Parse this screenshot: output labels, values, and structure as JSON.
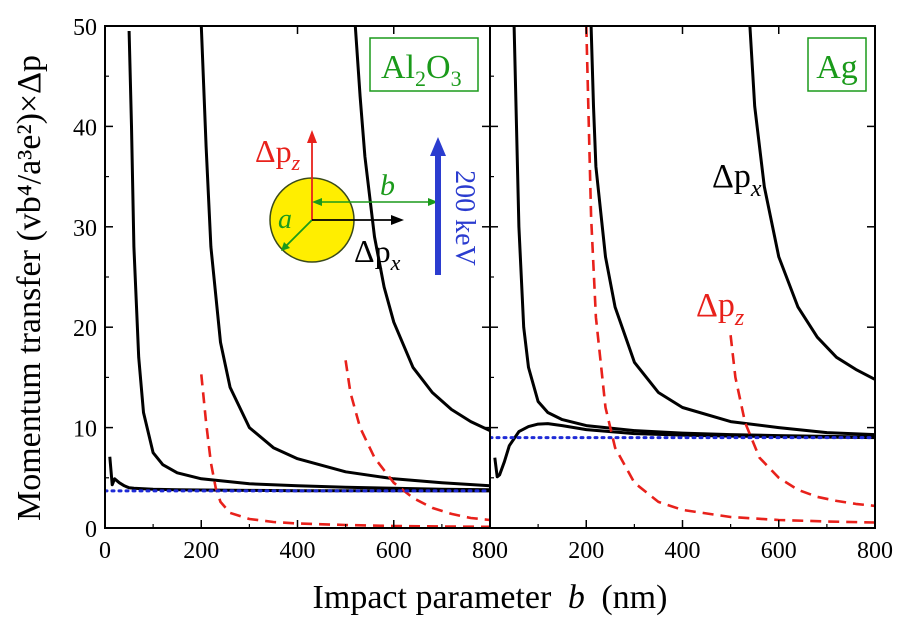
{
  "figure": {
    "ylabel": "Momentum transfer (vb⁴/a³e²)×Δp",
    "xlabel_main": "Impact parameter",
    "xlabel_var": "b",
    "xlabel_unit": "(nm)",
    "colors": {
      "dpx": "#000000",
      "dpz": "#e8211b",
      "asymptote": "#1f2bd6",
      "frame": "#000000",
      "sphere": "#ffee00",
      "sphere_edge": "#3a4a1a",
      "box": "#1a9a1a",
      "beam": "#2b3ccf",
      "radius": "#1a9a1a"
    },
    "inset": {
      "dpz_label": "Δp",
      "dpz_sub": "z",
      "dpx_label": "Δp",
      "dpx_sub": "x",
      "b_label": "b",
      "a_label": "a",
      "beam_label": "200 keV"
    }
  },
  "chart_data": [
    {
      "type": "line",
      "material": "Al₂O₃",
      "material_base": "Al",
      "material_sub1": "2",
      "material_mid": "O",
      "material_sub2": "3",
      "xlim": [
        0,
        800
      ],
      "ylim": [
        0,
        50
      ],
      "xticks": [
        0,
        200,
        400,
        600,
        800
      ],
      "yticks": [
        0,
        10,
        20,
        30,
        40,
        50
      ],
      "series": [
        {
          "component": "dpx",
          "style": "solid",
          "x": [
            10,
            15,
            20,
            30,
            40,
            50,
            60,
            80,
            100,
            150,
            200,
            300,
            400,
            500,
            600,
            700,
            800
          ],
          "y": [
            7.1,
            4.3,
            4.9,
            4.5,
            4.2,
            4.0,
            3.95,
            3.9,
            3.85,
            3.8,
            3.78,
            3.75,
            3.72,
            3.72,
            3.71,
            3.7,
            3.7
          ]
        },
        {
          "component": "dpx",
          "style": "solid",
          "x": [
            50,
            55,
            60,
            70,
            80,
            100,
            120,
            150,
            200,
            300,
            400,
            500,
            600,
            700,
            800
          ],
          "y": [
            49.5,
            40,
            28,
            17,
            11.5,
            7.5,
            6.3,
            5.5,
            4.9,
            4.4,
            4.2,
            4.05,
            3.95,
            3.85,
            3.8
          ]
        },
        {
          "component": "dpx",
          "style": "solid",
          "x": [
            200,
            205,
            210,
            220,
            240,
            260,
            300,
            350,
            400,
            500,
            600,
            700,
            800
          ],
          "y": [
            50,
            44,
            38,
            28,
            18.5,
            14,
            10,
            8,
            6.9,
            5.6,
            4.9,
            4.5,
            4.2
          ]
        },
        {
          "component": "dpx",
          "style": "solid",
          "x": [
            520,
            530,
            540,
            560,
            580,
            600,
            640,
            680,
            720,
            760,
            800
          ],
          "y": [
            50,
            43,
            37,
            29,
            24,
            20.5,
            16,
            13.5,
            11.8,
            10.6,
            9.7
          ]
        },
        {
          "component": "dpz",
          "style": "dashed",
          "x": [
            200,
            210,
            220,
            230,
            240,
            260,
            300,
            350,
            400,
            500,
            600,
            700,
            800
          ],
          "y": [
            15.3,
            10.5,
            6.5,
            4,
            2.6,
            1.5,
            0.9,
            0.6,
            0.45,
            0.3,
            0.2,
            0.15,
            0.12
          ]
        },
        {
          "component": "dpz",
          "style": "dashed",
          "x": [
            500,
            510,
            530,
            560,
            600,
            640,
            680,
            720,
            760,
            800
          ],
          "y": [
            16.7,
            13.5,
            10,
            7,
            4.5,
            3.0,
            2.0,
            1.4,
            1.0,
            0.8
          ]
        },
        {
          "component": "asymptote",
          "style": "dotted",
          "x": [
            0,
            800
          ],
          "y": [
            3.7,
            3.7
          ]
        }
      ]
    },
    {
      "type": "line",
      "material": "Ag",
      "xlim": [
        0,
        800
      ],
      "ylim": [
        0,
        50
      ],
      "xticks": [
        0,
        200,
        400,
        600,
        800
      ],
      "yticks": [
        0,
        10,
        20,
        30,
        40,
        50
      ],
      "series": [
        {
          "component": "dpx",
          "style": "solid",
          "x": [
            10,
            15,
            20,
            30,
            40,
            60,
            80,
            100,
            120,
            150,
            200,
            300,
            400,
            500,
            600,
            700,
            800
          ],
          "y": [
            7.0,
            5.1,
            5.3,
            6.6,
            8.2,
            9.6,
            10.1,
            10.35,
            10.4,
            10.2,
            9.8,
            9.4,
            9.25,
            9.15,
            9.1,
            9.05,
            9.0
          ]
        },
        {
          "component": "dpx",
          "style": "solid",
          "x": [
            50,
            55,
            60,
            70,
            80,
            100,
            120,
            150,
            200,
            300,
            400,
            500,
            600,
            700,
            800
          ],
          "y": [
            50,
            40,
            30,
            20,
            16,
            12.6,
            11.5,
            10.8,
            10.2,
            9.7,
            9.45,
            9.3,
            9.2,
            9.12,
            9.05
          ]
        },
        {
          "component": "dpx",
          "style": "solid",
          "x": [
            210,
            215,
            220,
            240,
            260,
            300,
            350,
            400,
            500,
            600,
            700,
            800
          ],
          "y": [
            50,
            42,
            36,
            27,
            22,
            16.5,
            13.5,
            12,
            10.6,
            10,
            9.5,
            9.3
          ]
        },
        {
          "component": "dpx",
          "style": "solid",
          "x": [
            540,
            550,
            570,
            600,
            640,
            680,
            720,
            760,
            800
          ],
          "y": [
            50,
            42,
            34,
            27,
            22,
            19,
            17,
            15.8,
            14.8
          ]
        },
        {
          "component": "dpz",
          "style": "dashed",
          "x": [
            200,
            210,
            220,
            240,
            260,
            300,
            350,
            400,
            500,
            600,
            700,
            800
          ],
          "y": [
            50,
            31,
            21,
            12,
            8,
            4.5,
            2.6,
            1.8,
            1.1,
            0.8,
            0.65,
            0.55
          ]
        },
        {
          "component": "dpz",
          "style": "dashed",
          "x": [
            500,
            510,
            530,
            560,
            600,
            640,
            680,
            720,
            760,
            800
          ],
          "y": [
            19.2,
            15,
            10.5,
            7,
            5,
            3.8,
            3.1,
            2.7,
            2.4,
            2.2
          ]
        },
        {
          "component": "asymptote",
          "style": "dotted",
          "x": [
            0,
            800
          ],
          "y": [
            9.0,
            9.0
          ]
        }
      ],
      "annotations": [
        {
          "label": "Δp",
          "sub": "x",
          "component": "dpx",
          "at": [
            550,
            35
          ]
        },
        {
          "label": "Δp",
          "sub": "z",
          "component": "dpz",
          "at": [
            470,
            21
          ]
        }
      ]
    }
  ]
}
